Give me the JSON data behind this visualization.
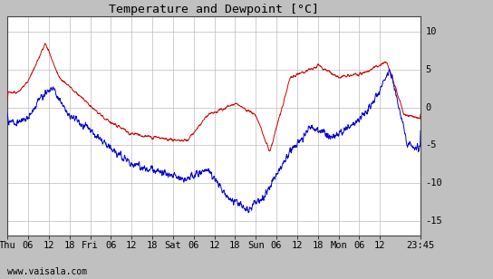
{
  "title": "Temperature and Dewpoint [°C]",
  "ylabel_right_ticks": [
    10,
    5,
    0,
    -5,
    -10,
    -15
  ],
  "ylim": [
    -17,
    12
  ],
  "background_color": "#c0c0c0",
  "plot_bg_color": "#ffffff",
  "temp_color": "#cc0000",
  "dew_color": "#0000cc",
  "grid_color": "#bbbbbb",
  "watermark": "www.vaisala.com",
  "x_tick_labels": [
    "Thu",
    "06",
    "12",
    "18",
    "Fri",
    "06",
    "12",
    "18",
    "Sat",
    "06",
    "12",
    "18",
    "Sun",
    "06",
    "12",
    "18",
    "Mon",
    "06",
    "12",
    "23:45"
  ],
  "x_tick_positions": [
    0,
    6,
    12,
    18,
    24,
    30,
    36,
    42,
    48,
    54,
    60,
    66,
    72,
    78,
    84,
    90,
    96,
    102,
    108,
    119.75
  ],
  "xlim": [
    0,
    119.75
  ]
}
